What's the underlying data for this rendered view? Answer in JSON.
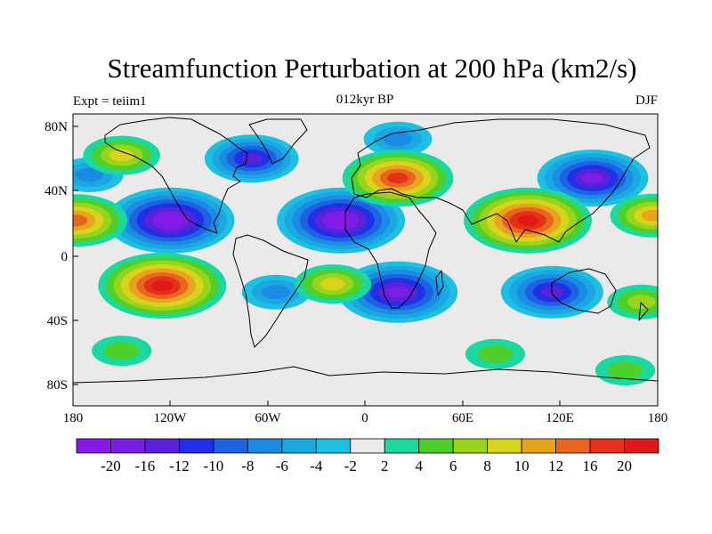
{
  "plot": {
    "title": "Streamfunction Perturbation at 200 hPa (km2/s)",
    "left_label": "Expt = teiim1",
    "center_label": "012kyr BP",
    "right_label": "DJF",
    "lat_ticks": [
      "80N",
      "40N",
      "0",
      "40S",
      "80S"
    ],
    "lon_ticks": [
      "180",
      "120W",
      "60W",
      "0",
      "60E",
      "120E",
      "180"
    ]
  },
  "colorbar": {
    "labels": [
      "-20",
      "-16",
      "-12",
      "-10",
      "-8",
      "-6",
      "-4",
      "-2",
      "2",
      "4",
      "6",
      "8",
      "10",
      "12",
      "16",
      "20"
    ],
    "colors": [
      "#8a18e8",
      "#7a1ee6",
      "#5a22d8",
      "#2030e6",
      "#1d62e0",
      "#1a8ce6",
      "#1aa8e0",
      "#1ec0e2",
      "#eaeaea",
      "#1ad8a0",
      "#4ed02a",
      "#9ad41a",
      "#d8d41c",
      "#e8a41e",
      "#e8661e",
      "#e6301a",
      "#e01818"
    ],
    "colors_note_low_to_high": true
  },
  "map": {
    "background_color": "#eaeaea",
    "features": [
      {
        "lon": -120,
        "lat": 22,
        "value": -20
      },
      {
        "lon": -15,
        "lat": 22,
        "value": -20
      },
      {
        "lon": 20,
        "lat": -22,
        "value": -18
      },
      {
        "lon": 115,
        "lat": -22,
        "value": -14
      },
      {
        "lon": 140,
        "lat": 48,
        "value": -16
      },
      {
        "lon": -70,
        "lat": 60,
        "value": -12
      },
      {
        "lon": -55,
        "lat": -22,
        "value": -6
      },
      {
        "lon": -170,
        "lat": 50,
        "value": -6
      },
      {
        "lon": 20,
        "lat": 72,
        "value": -6
      },
      {
        "lon": 20,
        "lat": 48,
        "value": 16
      },
      {
        "lon": 100,
        "lat": 22,
        "value": 20
      },
      {
        "lon": -125,
        "lat": -18,
        "value": 20
      },
      {
        "lon": -150,
        "lat": 62,
        "value": 8
      },
      {
        "lon": -178,
        "lat": 22,
        "value": 14
      },
      {
        "lon": 177,
        "lat": 25,
        "value": 10
      },
      {
        "lon": -20,
        "lat": -17,
        "value": 8
      },
      {
        "lon": -150,
        "lat": -58,
        "value": 4
      },
      {
        "lon": 80,
        "lat": -60,
        "value": 4
      },
      {
        "lon": 160,
        "lat": -70,
        "value": 4
      },
      {
        "lon": 170,
        "lat": -28,
        "value": 6
      }
    ]
  }
}
